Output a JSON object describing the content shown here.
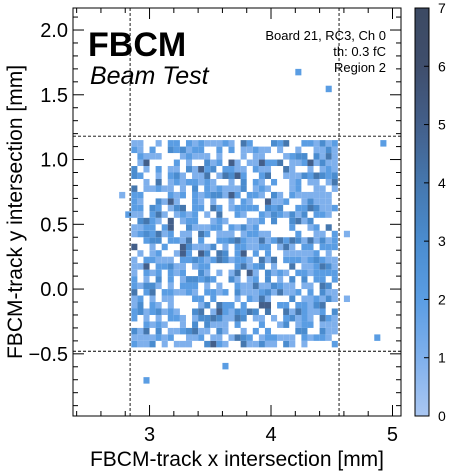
{
  "chart_data": {
    "type": "heatmap",
    "title": "",
    "xlabel": "FBCM-track x intersection [mm]",
    "ylabel": "FBCM-track y intersection [mm]",
    "xlim": [
      2.37,
      5.07
    ],
    "ylim": [
      -0.98,
      2.17
    ],
    "xticks": [
      3,
      4,
      5
    ],
    "yticks": [
      -0.5,
      0.0,
      0.5,
      1.0,
      1.5,
      2.0
    ],
    "xtick_labels": [
      "3",
      "4",
      "5"
    ],
    "ytick_labels": [
      "−0.5",
      "0.0",
      "0.5",
      "1.0",
      "1.5",
      "2.0"
    ],
    "bin_width": 0.05,
    "colorbar": {
      "min": 0,
      "max": 7,
      "ticks": [
        0,
        1,
        2,
        3,
        4,
        5,
        6,
        7
      ],
      "tick_labels": [
        "0",
        "1",
        "2",
        "3",
        "4",
        "5",
        "6",
        "7"
      ],
      "colors": [
        "#aac7f2",
        "#7fb0ec",
        "#5a9de3",
        "#4a8ccf",
        "#4577ae",
        "#435f8a",
        "#3f4e6c",
        "#3c4a63"
      ]
    },
    "cut_lines": {
      "x": [
        2.84,
        4.56
      ],
      "y": [
        -0.48,
        1.18
      ]
    },
    "region": {
      "x": [
        2.85,
        4.55
      ],
      "y": [
        -0.45,
        1.15
      ]
    },
    "outlier_bins": [
      [
        4.2,
        1.65,
        2
      ],
      [
        4.45,
        1.52,
        2
      ],
      [
        4.9,
        1.1,
        2
      ],
      [
        2.95,
        -0.73,
        2
      ],
      [
        4.85,
        -0.4,
        2
      ],
      [
        4.6,
        0.4,
        1
      ],
      [
        4.6,
        -0.1,
        1
      ],
      [
        2.75,
        0.7,
        1
      ],
      [
        2.8,
        0.55,
        2
      ],
      [
        3.6,
        -0.62,
        2
      ]
    ],
    "annotations": {
      "brand": "FBCM",
      "subtitle": "Beam Test",
      "board": "Board 21, RC3, Ch 0",
      "threshold": "th: 0.3 fC",
      "region": "Region 2"
    }
  }
}
